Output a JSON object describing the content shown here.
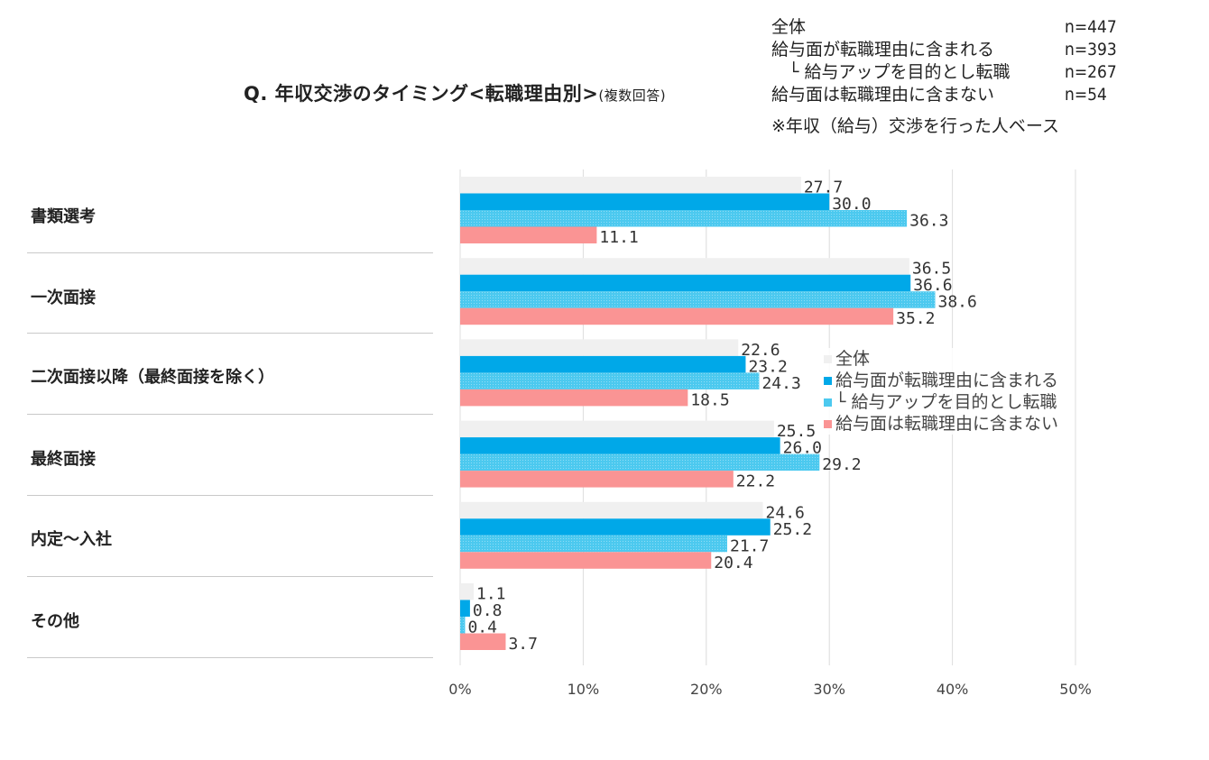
{
  "chart_data": {
    "type": "bar",
    "orientation": "horizontal",
    "title": "Q.  年収交渉のタイミング<転職理由別>",
    "title_suffix": "(複数回答)",
    "xlabel": "",
    "ylabel": "",
    "xlim": [
      0,
      50
    ],
    "x_ticks": [
      "0%",
      "10%",
      "20%",
      "30%",
      "40%",
      "50%"
    ],
    "grid": true,
    "legend_position": "center-right",
    "categories": [
      "書類選考",
      "一次面接",
      "二次面接以降（最終面接を除く）",
      "最終面接",
      "内定～入社",
      "その他"
    ],
    "series": [
      {
        "name": "全体",
        "n": "n=447",
        "color": "#f0f0f0",
        "values": [
          27.7,
          36.5,
          22.6,
          25.5,
          24.6,
          1.1
        ]
      },
      {
        "name": "給与面が転職理由に含まれる",
        "n": "n=393",
        "color": "#00a8e8",
        "values": [
          30.0,
          36.6,
          23.2,
          26.0,
          25.2,
          0.8
        ]
      },
      {
        "name": "└ 給与アップを目的とし転職",
        "n": "n=267",
        "color": "#4cc9ef",
        "values": [
          36.3,
          38.6,
          24.3,
          29.2,
          21.7,
          0.4
        ]
      },
      {
        "name": "給与面は転職理由に含まない",
        "n": "n=54",
        "color": "#fa9494",
        "values": [
          11.1,
          35.2,
          18.5,
          22.2,
          20.4,
          3.7
        ]
      }
    ],
    "value_labels": [
      [
        "27.7",
        "36.5",
        "22.6",
        "25.5",
        "24.6",
        "1.1"
      ],
      [
        "30.0",
        "36.6",
        "23.2",
        "26.0",
        "25.2",
        "0.8"
      ],
      [
        "36.3",
        "38.6",
        "24.3",
        "29.2",
        "21.7",
        "0.4"
      ],
      [
        "11.1",
        "35.2",
        "18.5",
        "22.2",
        "20.4",
        "3.7"
      ]
    ]
  },
  "header": {
    "title": "Q.  年収交渉のタイミング<転職理由別>",
    "title_suffix": "(複数回答)"
  },
  "samples": {
    "rows": [
      {
        "label": "全体",
        "n": "n=447"
      },
      {
        "label": "給与面が転職理由に含まれる",
        "n": "n=393"
      },
      {
        "label": "　└ 給与アップを目的とし転職",
        "n": "n=267"
      },
      {
        "label": "給与面は転職理由に含まない",
        "n": "n=54"
      }
    ],
    "note": "※年収（給与）交渉を行った人ベース"
  },
  "legend": {
    "items": [
      {
        "label": "全体",
        "color": "#f0f0f0"
      },
      {
        "label": "給与面が転職理由に含まれる",
        "color": "#00a8e8"
      },
      {
        "label": "└  給与アップを目的とし転職",
        "color": "#4cc9ef"
      },
      {
        "label": "給与面は転職理由に含まない",
        "color": "#fa9494"
      }
    ]
  }
}
